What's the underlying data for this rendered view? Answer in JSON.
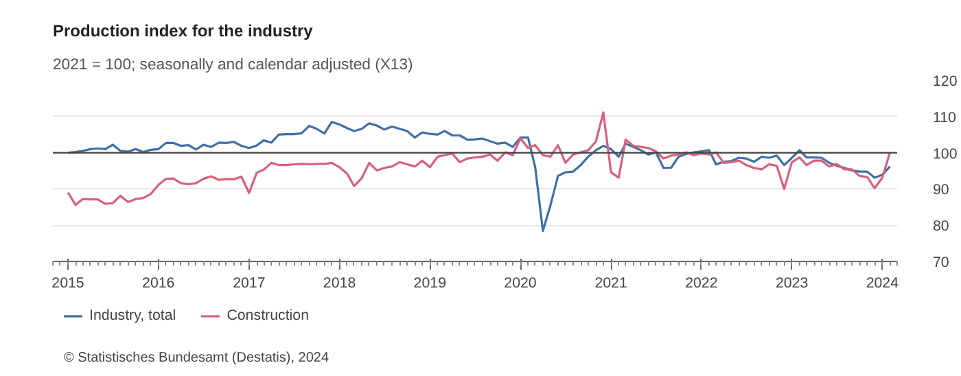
{
  "chart_data": {
    "type": "line",
    "title": "Production index for the industry",
    "subtitle": "2021 = 100; seasonally and calendar adjusted (X13)",
    "annotations": [
      "© Statistisches Bundesamt (Destatis), 2024"
    ],
    "x": [
      "2015-01",
      "2015-02",
      "2015-03",
      "2015-04",
      "2015-05",
      "2015-06",
      "2015-07",
      "2015-08",
      "2015-09",
      "2015-10",
      "2015-11",
      "2015-12",
      "2016-01",
      "2016-02",
      "2016-03",
      "2016-04",
      "2016-05",
      "2016-06",
      "2016-07",
      "2016-08",
      "2016-09",
      "2016-10",
      "2016-11",
      "2016-12",
      "2017-01",
      "2017-02",
      "2017-03",
      "2017-04",
      "2017-05",
      "2017-06",
      "2017-07",
      "2017-08",
      "2017-09",
      "2017-10",
      "2017-11",
      "2017-12",
      "2018-01",
      "2018-02",
      "2018-03",
      "2018-04",
      "2018-05",
      "2018-06",
      "2018-07",
      "2018-08",
      "2018-09",
      "2018-10",
      "2018-11",
      "2018-12",
      "2019-01",
      "2019-02",
      "2019-03",
      "2019-04",
      "2019-05",
      "2019-06",
      "2019-07",
      "2019-08",
      "2019-09",
      "2019-10",
      "2019-11",
      "2019-12",
      "2020-01",
      "2020-02",
      "2020-03",
      "2020-04",
      "2020-05",
      "2020-06",
      "2020-07",
      "2020-08",
      "2020-09",
      "2020-10",
      "2020-11",
      "2020-12",
      "2021-01",
      "2021-02",
      "2021-03",
      "2021-04",
      "2021-05",
      "2021-06",
      "2021-07",
      "2021-08",
      "2021-09",
      "2021-10",
      "2021-11",
      "2021-12",
      "2022-01",
      "2022-02",
      "2022-03",
      "2022-04",
      "2022-05",
      "2022-06",
      "2022-07",
      "2022-08",
      "2022-09",
      "2022-10",
      "2022-11",
      "2022-12",
      "2023-01",
      "2023-02",
      "2023-03",
      "2023-04",
      "2023-05",
      "2023-06",
      "2023-07",
      "2023-08",
      "2023-09",
      "2023-10",
      "2023-11",
      "2023-12",
      "2024-01",
      "2024-02"
    ],
    "series": [
      {
        "name": "Industry, total",
        "color": "#3f6fa6",
        "values": [
          100.0,
          100.2,
          100.5,
          101.0,
          101.2,
          101.0,
          102.2,
          100.5,
          100.3,
          101.0,
          100.2,
          100.8,
          101.0,
          102.7,
          102.7,
          101.9,
          102.1,
          100.9,
          102.2,
          101.6,
          102.8,
          102.7,
          103.0,
          101.9,
          101.3,
          102.0,
          103.4,
          102.8,
          105.0,
          105.1,
          105.1,
          105.4,
          107.4,
          106.6,
          105.3,
          108.5,
          107.8,
          106.8,
          106.0,
          106.6,
          108.1,
          107.5,
          106.4,
          107.2,
          106.6,
          106.0,
          104.2,
          105.6,
          105.2,
          105.0,
          106.0,
          104.8,
          104.8,
          103.6,
          103.7,
          103.9,
          103.2,
          102.5,
          102.8,
          101.6,
          104.2,
          104.2,
          96.0,
          78.4,
          85.4,
          93.6,
          94.6,
          94.8,
          96.6,
          98.9,
          100.7,
          101.9,
          101.0,
          98.9,
          102.5,
          101.6,
          100.7,
          99.5,
          100.1,
          95.8,
          95.9,
          98.9,
          99.7,
          100.1,
          100.4,
          100.7,
          96.8,
          97.5,
          97.7,
          98.6,
          98.4,
          97.5,
          98.9,
          98.6,
          99.2,
          96.6,
          98.6,
          100.7,
          98.7,
          98.7,
          98.6,
          97.2,
          96.4,
          95.8,
          95.1,
          94.8,
          94.8,
          93.1,
          93.9,
          96.2
        ]
      },
      {
        "name": "Construction",
        "color": "#d9607a",
        "values": [
          89.0,
          85.6,
          87.2,
          87.1,
          87.1,
          85.9,
          86.1,
          88.1,
          86.4,
          87.2,
          87.5,
          88.6,
          91.1,
          92.8,
          92.9,
          91.6,
          91.3,
          91.6,
          92.8,
          93.5,
          92.5,
          92.7,
          92.7,
          93.4,
          88.9,
          94.5,
          95.3,
          97.2,
          96.6,
          96.6,
          96.8,
          96.9,
          96.8,
          96.9,
          96.9,
          97.2,
          96.0,
          94.2,
          90.8,
          93.0,
          97.2,
          95.1,
          95.8,
          96.2,
          97.4,
          96.8,
          96.2,
          97.8,
          96.0,
          98.9,
          99.3,
          99.8,
          97.4,
          98.4,
          98.7,
          98.9,
          99.5,
          97.8,
          100.1,
          99.3,
          104.0,
          101.3,
          102.1,
          99.3,
          98.9,
          102.1,
          97.2,
          99.5,
          100.1,
          100.7,
          103.1,
          111.1,
          94.6,
          93.1,
          103.6,
          101.9,
          101.6,
          101.3,
          100.4,
          98.4,
          99.2,
          99.5,
          100.1,
          99.3,
          99.8,
          99.5,
          100.1,
          97.2,
          97.4,
          97.8,
          96.6,
          95.8,
          95.4,
          96.8,
          96.4,
          90.0,
          97.4,
          98.7,
          96.6,
          97.8,
          97.8,
          96.2,
          96.9,
          95.4,
          95.4,
          93.6,
          93.3,
          90.2,
          93.1,
          100.1
        ]
      }
    ],
    "xlim": [
      "2014-11",
      "2024-03"
    ],
    "xticks": [
      "2015",
      "2016",
      "2017",
      "2018",
      "2019",
      "2020",
      "2021",
      "2022",
      "2023",
      "2024"
    ],
    "ylim": [
      70,
      120
    ],
    "yticks": [
      70,
      80,
      90,
      100,
      110,
      120
    ],
    "ref_lines": [
      {
        "axis": "y",
        "value": 100,
        "color": "#444444"
      }
    ],
    "grid": "y",
    "legend": "bottom",
    "line_style": "solid"
  }
}
